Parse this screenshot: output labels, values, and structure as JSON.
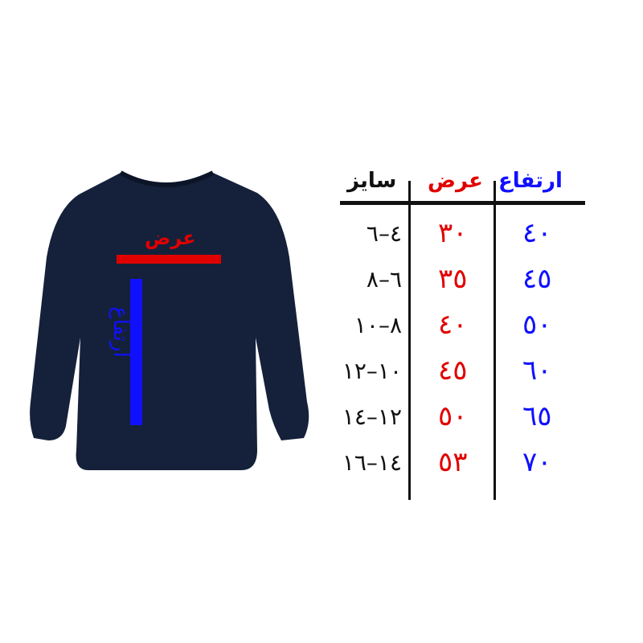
{
  "image": {
    "product": "sweatshirt",
    "shirt_color": "#15213a",
    "width_label": "عرض",
    "height_label": "ارتفاع",
    "width_bar_color": "#e10000",
    "height_bar_color": "#1010ff"
  },
  "table": {
    "headers": {
      "height": "ارتفاع",
      "width": "عرض",
      "size": "سایز"
    },
    "colors": {
      "height": "#1010ff",
      "width": "#e10000",
      "size": "#111111"
    },
    "rows": [
      {
        "height": "٤٠",
        "width": "٣٠",
        "size": "٤–٦"
      },
      {
        "height": "٤٥",
        "width": "٣٥",
        "size": "٦–٨"
      },
      {
        "height": "٥٠",
        "width": "٤٠",
        "size": "٨–١٠"
      },
      {
        "height": "٦٠",
        "width": "٤٥",
        "size": "١٠–١٢"
      },
      {
        "height": "٦٥",
        "width": "٥٠",
        "size": "١٢–١٤"
      },
      {
        "height": "٧٠",
        "width": "٥٣",
        "size": "١٤–١٦"
      }
    ]
  }
}
